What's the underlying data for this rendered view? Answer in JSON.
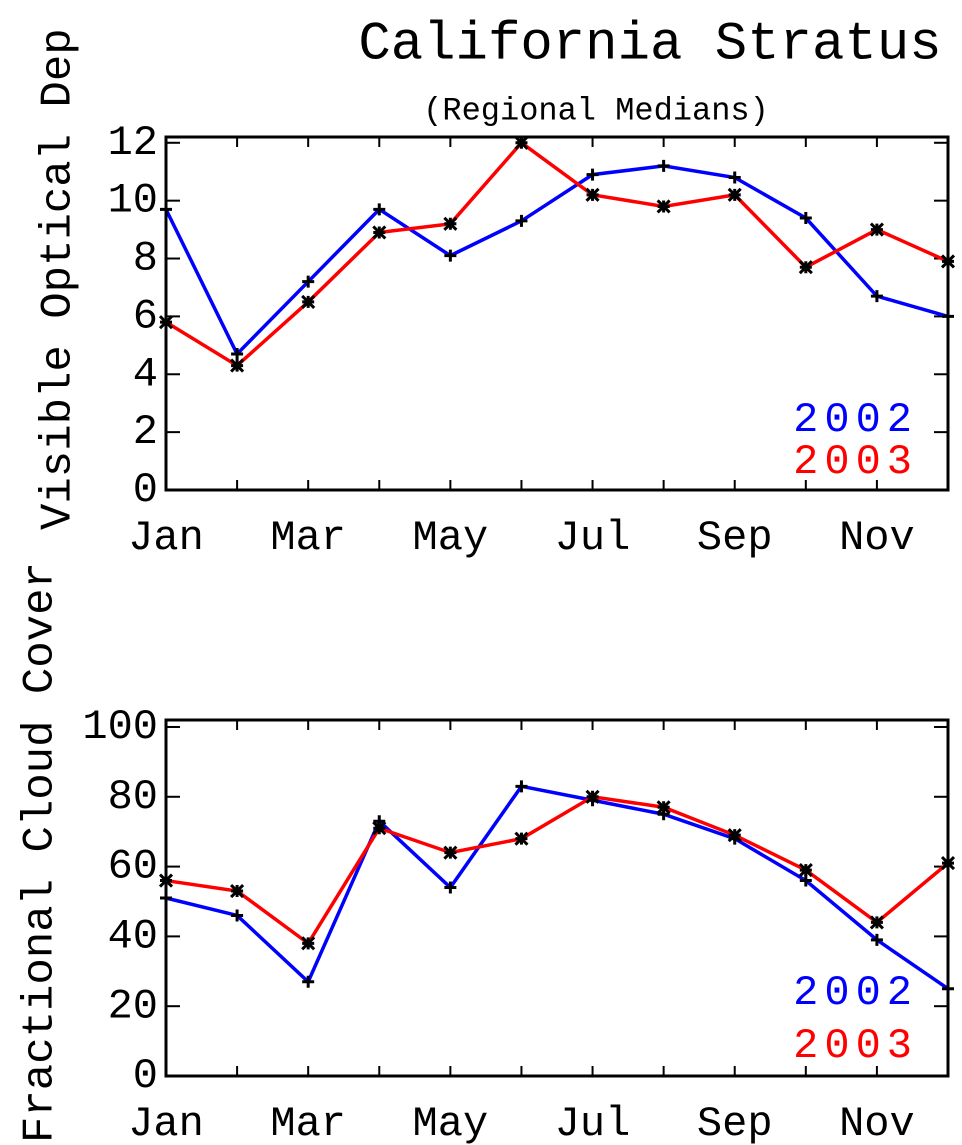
{
  "chart_data": [
    {
      "type": "line",
      "title": "California Stratus",
      "subtitle": "(Regional Medians)",
      "y_label": "Visible Optical Dep",
      "categories": [
        "Jan",
        null,
        "Mar",
        null,
        "May",
        null,
        "Jul",
        null,
        "Sep",
        null,
        "Nov",
        null
      ],
      "series": [
        {
          "name": "2002",
          "color": "#0000ff",
          "values": [
            9.7,
            4.7,
            7.2,
            9.7,
            8.1,
            9.3,
            10.9,
            11.2,
            10.8,
            9.4,
            6.7,
            6.0
          ]
        },
        {
          "name": "2003",
          "color": "#ff0000",
          "values": [
            5.8,
            4.3,
            6.5,
            8.9,
            9.2,
            12.0,
            10.2,
            9.8,
            10.2,
            7.7,
            9.0,
            7.9
          ]
        }
      ],
      "ylim": [
        0,
        12.2
      ],
      "yticks": [
        0,
        2,
        4,
        6,
        8,
        10,
        12
      ],
      "legend": "lower right"
    },
    {
      "type": "line",
      "y_label": "Fractional Cloud Cover",
      "categories": [
        "Jan",
        null,
        "Mar",
        null,
        "May",
        null,
        "Jul",
        null,
        "Sep",
        null,
        "Nov",
        null
      ],
      "series": [
        {
          "name": "2002",
          "color": "#0000ff",
          "values": [
            51,
            46,
            27,
            73,
            54,
            83,
            79,
            75,
            68,
            56,
            39,
            25
          ]
        },
        {
          "name": "2003",
          "color": "#ff0000",
          "values": [
            56,
            53,
            38,
            71,
            64,
            68,
            80,
            77,
            69,
            59,
            44,
            61
          ]
        }
      ],
      "ylim": [
        0,
        102
      ],
      "yticks": [
        0,
        20,
        40,
        60,
        80,
        100
      ],
      "legend": "lower right"
    }
  ]
}
